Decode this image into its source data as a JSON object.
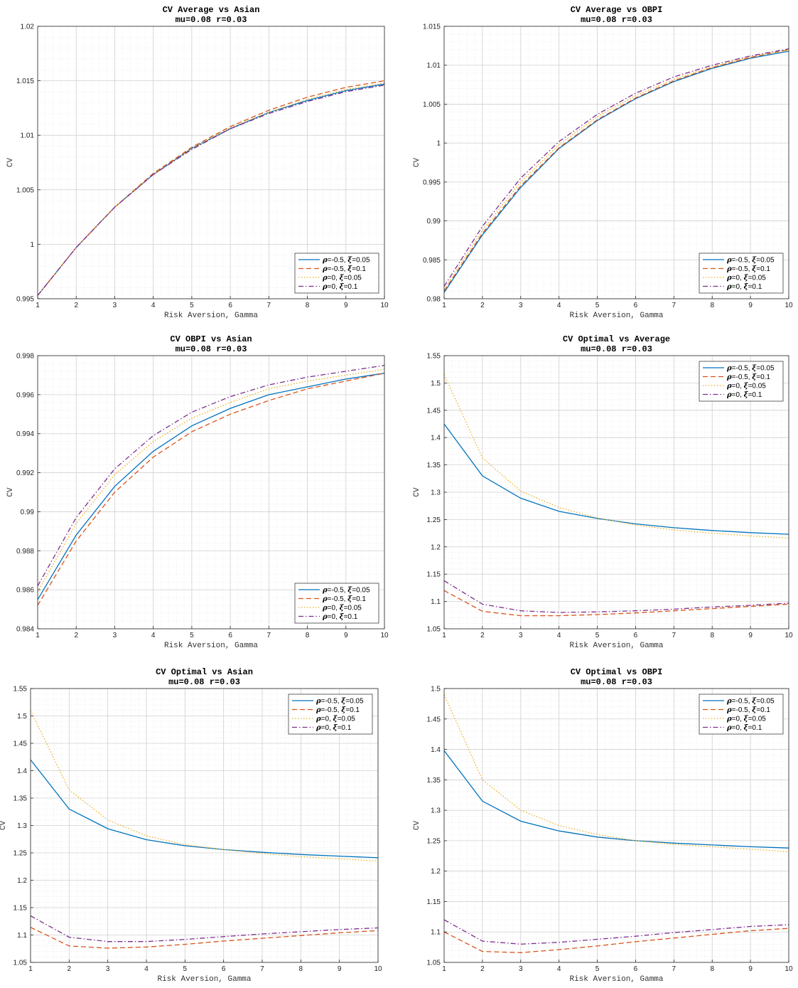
{
  "legend_labels": [
    {
      "sym1": "ρ",
      "val1": "=-0.5, ",
      "sym2": "ξ",
      "val2": "=0.05"
    },
    {
      "sym1": "ρ",
      "val1": "=-0.5, ",
      "sym2": "ξ",
      "val2": "=0.1"
    },
    {
      "sym1": "ρ",
      "val1": "=0, ",
      "sym2": "ξ",
      "val2": "=0.05"
    },
    {
      "sym1": "ρ",
      "val1": "=0, ",
      "sym2": "ξ",
      "val2": "=0.1"
    }
  ],
  "series_styles": [
    {
      "color": "#0072BD",
      "dash": ""
    },
    {
      "color": "#D95319",
      "dash": "7,4"
    },
    {
      "color": "#EDB120",
      "dash": "1.5,2.5"
    },
    {
      "color": "#7E2F8E",
      "dash": "7,3,1.5,3"
    }
  ],
  "chart_data": [
    {
      "type": "line",
      "title": "CV Average vs Asian",
      "subtitle": "mu=0.08 r=0.03",
      "xlabel": "Risk Aversion, Gamma",
      "ylabel": "CV",
      "xlim": [
        1,
        10
      ],
      "ylim": [
        0.995,
        1.02
      ],
      "yticks": [
        0.995,
        1,
        1.005,
        1.01,
        1.015,
        1.02
      ],
      "ytick_labels": [
        "0.995",
        "1",
        "1.005",
        "1.01",
        "1.015",
        "1.02"
      ],
      "grid": true,
      "legend_position": "bottom-right",
      "x": [
        1,
        2,
        3,
        4,
        5,
        6,
        7,
        8,
        9,
        10
      ],
      "series": [
        {
          "values": [
            0.9953,
            0.9997,
            1.0034,
            1.0064,
            1.0088,
            1.0106,
            1.0121,
            1.0132,
            1.0141,
            1.0147
          ]
        },
        {
          "values": [
            0.9953,
            0.9997,
            1.0034,
            1.0065,
            1.0089,
            1.0108,
            1.0123,
            1.0135,
            1.0144,
            1.015
          ]
        },
        {
          "values": [
            0.9953,
            0.9997,
            1.0034,
            1.0064,
            1.0088,
            1.0107,
            1.0121,
            1.0133,
            1.0142,
            1.0148
          ]
        },
        {
          "values": [
            0.9953,
            0.9997,
            1.0034,
            1.0064,
            1.0087,
            1.0106,
            1.012,
            1.0131,
            1.014,
            1.0146
          ]
        }
      ]
    },
    {
      "type": "line",
      "title": "CV Average vs OBPI",
      "subtitle": "mu=0.08 r=0.03",
      "xlabel": "Risk Aversion, Gamma",
      "ylabel": "CV",
      "xlim": [
        1,
        10
      ],
      "ylim": [
        0.98,
        1.015
      ],
      "yticks": [
        0.98,
        0.985,
        0.99,
        0.995,
        1,
        1.005,
        1.01,
        1.015
      ],
      "ytick_labels": [
        "0.98",
        "0.985",
        "0.99",
        "0.995",
        "1",
        "1.005",
        "1.01",
        "1.015"
      ],
      "grid": true,
      "legend_position": "bottom-right",
      "x": [
        1,
        2,
        3,
        4,
        5,
        6,
        7,
        8,
        9,
        10
      ],
      "series": [
        {
          "values": [
            0.9808,
            0.9882,
            0.9943,
            0.9993,
            1.0029,
            1.0057,
            1.0079,
            1.0096,
            1.0109,
            1.0118
          ]
        },
        {
          "values": [
            0.981,
            0.9884,
            0.9945,
            0.9994,
            1.003,
            1.0058,
            1.008,
            1.0097,
            1.011,
            1.012
          ]
        },
        {
          "values": [
            0.9812,
            0.9888,
            0.995,
            0.9998,
            1.0034,
            1.0061,
            1.0082,
            1.0098,
            1.0111,
            1.012
          ]
        },
        {
          "values": [
            0.9816,
            0.9893,
            0.9955,
            1.0002,
            1.0037,
            1.0064,
            1.0085,
            1.01,
            1.0112,
            1.0121
          ]
        }
      ]
    },
    {
      "type": "line",
      "title": "CV OBPI vs Asian",
      "subtitle": "mu=0.08 r=0.03",
      "xlabel": "Risk Aversion, Gamma",
      "ylabel": "CV",
      "xlim": [
        1,
        10
      ],
      "ylim": [
        0.984,
        0.998
      ],
      "yticks": [
        0.984,
        0.986,
        0.988,
        0.99,
        0.992,
        0.994,
        0.996,
        0.998
      ],
      "ytick_labels": [
        "0.984",
        "0.986",
        "0.988",
        "0.99",
        "0.992",
        "0.994",
        "0.996",
        "0.998"
      ],
      "grid": true,
      "legend_position": "bottom-right",
      "x": [
        1,
        2,
        3,
        4,
        5,
        6,
        7,
        8,
        9,
        10
      ],
      "series": [
        {
          "values": [
            0.9855,
            0.9888,
            0.9913,
            0.9931,
            0.9944,
            0.9953,
            0.996,
            0.9964,
            0.9968,
            0.9971
          ]
        },
        {
          "values": [
            0.9852,
            0.9885,
            0.991,
            0.9928,
            0.9941,
            0.995,
            0.9957,
            0.9963,
            0.9967,
            0.9971
          ]
        },
        {
          "values": [
            0.9859,
            0.9894,
            0.9919,
            0.9936,
            0.9948,
            0.9956,
            0.9963,
            0.9967,
            0.997,
            0.9973
          ]
        },
        {
          "values": [
            0.9862,
            0.9897,
            0.9922,
            0.9939,
            0.9951,
            0.9959,
            0.9965,
            0.9969,
            0.9972,
            0.9975
          ]
        }
      ]
    },
    {
      "type": "line",
      "title": "CV Optimal vs Average",
      "subtitle": "mu=0.08 r=0.03",
      "xlabel": "Risk Aversion, Gamma",
      "ylabel": "CV",
      "xlim": [
        1,
        10
      ],
      "ylim": [
        1.05,
        1.55
      ],
      "yticks": [
        1.05,
        1.1,
        1.15,
        1.2,
        1.25,
        1.3,
        1.35,
        1.4,
        1.45,
        1.5,
        1.55
      ],
      "ytick_labels": [
        "1.05",
        "1.1",
        "1.15",
        "1.2",
        "1.25",
        "1.3",
        "1.35",
        "1.4",
        "1.45",
        "1.5",
        "1.55"
      ],
      "grid": true,
      "legend_position": "top-right",
      "x": [
        1,
        2,
        3,
        4,
        5,
        6,
        7,
        8,
        9,
        10
      ],
      "series": [
        {
          "values": [
            1.425,
            1.33,
            1.289,
            1.265,
            1.252,
            1.242,
            1.235,
            1.23,
            1.226,
            1.223
          ]
        },
        {
          "values": [
            1.12,
            1.082,
            1.074,
            1.074,
            1.076,
            1.079,
            1.083,
            1.087,
            1.091,
            1.095
          ]
        },
        {
          "values": [
            1.515,
            1.363,
            1.302,
            1.272,
            1.253,
            1.24,
            1.231,
            1.225,
            1.22,
            1.216
          ]
        },
        {
          "values": [
            1.138,
            1.095,
            1.083,
            1.08,
            1.081,
            1.083,
            1.086,
            1.09,
            1.093,
            1.097
          ]
        }
      ]
    },
    {
      "type": "line",
      "title": "CV Optimal vs Asian",
      "subtitle": "mu=0.08 r=0.03",
      "xlabel": "Risk Aversion, Gamma",
      "ylabel": "CV",
      "xlim": [
        1,
        10
      ],
      "ylim": [
        1.05,
        1.55
      ],
      "yticks": [
        1.05,
        1.1,
        1.15,
        1.2,
        1.25,
        1.3,
        1.35,
        1.4,
        1.45,
        1.5,
        1.55
      ],
      "ytick_labels": [
        "1.05",
        "1.1",
        "1.15",
        "1.2",
        "1.25",
        "1.3",
        "1.35",
        "1.4",
        "1.45",
        "1.5",
        "1.55"
      ],
      "grid": true,
      "legend_position": "top-right",
      "x": [
        1,
        2,
        3,
        4,
        5,
        6,
        7,
        8,
        9,
        10
      ],
      "series": [
        {
          "values": [
            1.42,
            1.33,
            1.294,
            1.274,
            1.263,
            1.256,
            1.251,
            1.247,
            1.244,
            1.241
          ]
        },
        {
          "values": [
            1.114,
            1.08,
            1.076,
            1.078,
            1.083,
            1.089,
            1.094,
            1.099,
            1.104,
            1.108
          ]
        },
        {
          "values": [
            1.51,
            1.365,
            1.31,
            1.281,
            1.265,
            1.256,
            1.249,
            1.243,
            1.239,
            1.235
          ]
        },
        {
          "values": [
            1.135,
            1.096,
            1.088,
            1.088,
            1.092,
            1.097,
            1.102,
            1.106,
            1.11,
            1.113
          ]
        }
      ]
    },
    {
      "type": "line",
      "title": "CV Optimal vs OBPI",
      "subtitle": "mu=0.08 r=0.03",
      "xlabel": "Risk Aversion, Gamma",
      "ylabel": "CV",
      "xlim": [
        1,
        10
      ],
      "ylim": [
        1.05,
        1.5
      ],
      "yticks": [
        1.05,
        1.1,
        1.15,
        1.2,
        1.25,
        1.3,
        1.35,
        1.4,
        1.45,
        1.5
      ],
      "ytick_labels": [
        "1.05",
        "1.1",
        "1.15",
        "1.2",
        "1.25",
        "1.3",
        "1.35",
        "1.4",
        "1.45",
        "1.5"
      ],
      "grid": true,
      "legend_position": "top-right",
      "x": [
        1,
        2,
        3,
        4,
        5,
        6,
        7,
        8,
        9,
        10
      ],
      "series": [
        {
          "values": [
            1.398,
            1.315,
            1.282,
            1.266,
            1.256,
            1.25,
            1.246,
            1.243,
            1.24,
            1.238
          ]
        },
        {
          "values": [
            1.1,
            1.068,
            1.066,
            1.071,
            1.077,
            1.084,
            1.09,
            1.096,
            1.102,
            1.106
          ]
        },
        {
          "values": [
            1.49,
            1.35,
            1.3,
            1.275,
            1.26,
            1.25,
            1.244,
            1.24,
            1.236,
            1.232
          ]
        },
        {
          "values": [
            1.12,
            1.085,
            1.08,
            1.083,
            1.088,
            1.093,
            1.099,
            1.104,
            1.109,
            1.112
          ]
        }
      ]
    }
  ]
}
